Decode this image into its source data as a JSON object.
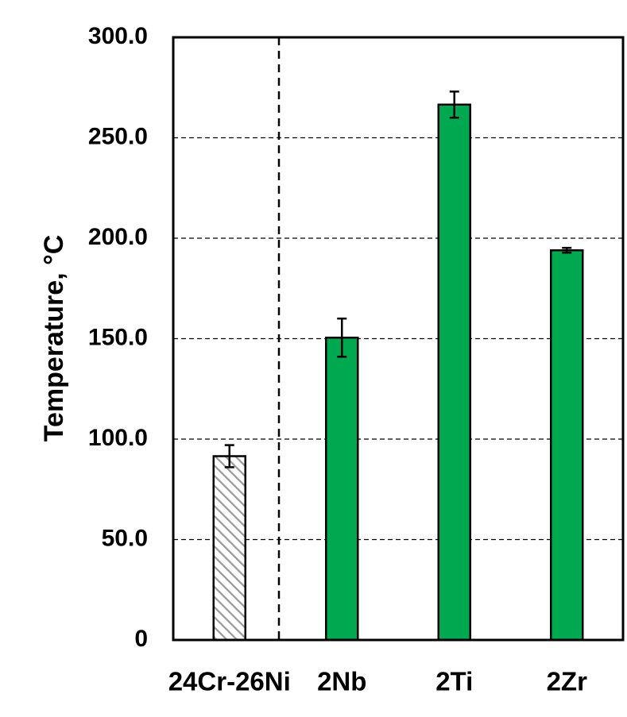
{
  "chart_data": {
    "type": "bar",
    "title": "",
    "xlabel": "",
    "ylabel": "Temperature, °C",
    "ylim": [
      0,
      300
    ],
    "yticks": [
      0,
      50,
      100,
      150,
      200,
      250,
      300
    ],
    "ytick_labels": [
      "0",
      "50.0",
      "100.0",
      "150.0",
      "200.0",
      "250.0",
      "300.0"
    ],
    "categories": [
      "24Cr-26Ni",
      "2Nb",
      "2Ti",
      "2Zr"
    ],
    "values": [
      91.5,
      150.5,
      266.5,
      194.0
    ],
    "error": [
      5.5,
      9.5,
      6.5,
      1.2
    ],
    "bar_styles": [
      "hatched",
      "solid",
      "solid",
      "solid"
    ],
    "grid": true,
    "separator_after_category": "24Cr-26Ni",
    "colors": {
      "bar": "#00a84f",
      "hatch": "#9a9a9a",
      "axis": "#000000",
      "grid": "#000000"
    }
  }
}
